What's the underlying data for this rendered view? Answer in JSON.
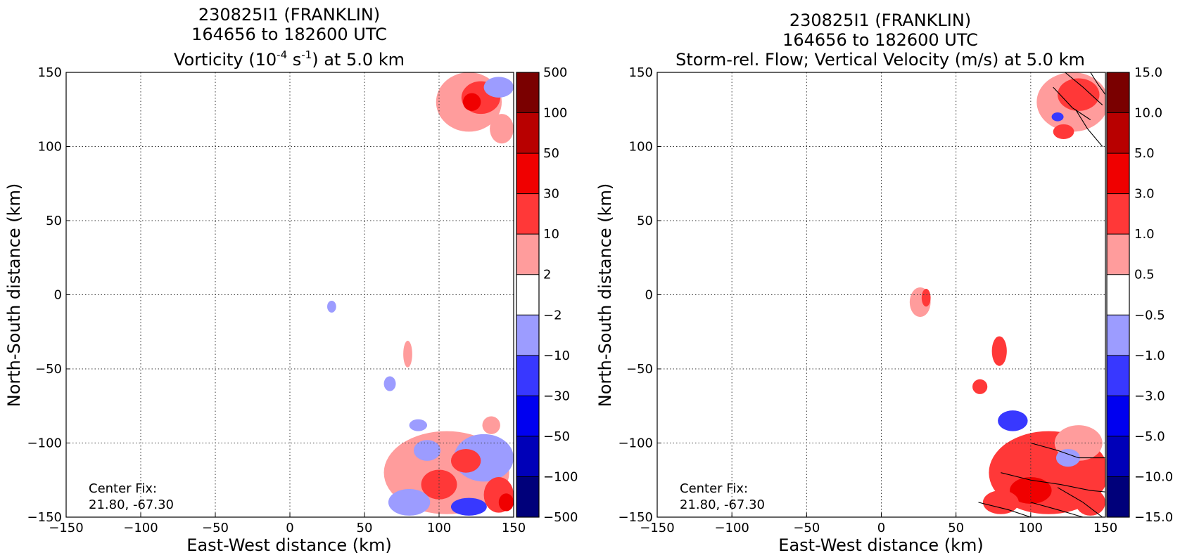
{
  "chart_data": [
    {
      "type": "heatmap",
      "title_lines": [
        "230825I1 (FRANKLIN)",
        "164656 to 182600 UTC"
      ],
      "title_var_pre": "Vorticity (10",
      "title_var_exp1": "-4",
      "title_var_mid": " s",
      "title_var_exp2": "-1",
      "title_var_post": ") at 5.0 km",
      "xlabel": "East-West distance (km)",
      "ylabel": "North-South distance (km)",
      "xlim": [
        -150,
        150
      ],
      "ylim": [
        -150,
        150
      ],
      "xticks": [
        -150,
        -100,
        -50,
        0,
        50,
        100,
        150
      ],
      "yticks": [
        -150,
        -100,
        -50,
        0,
        50,
        100,
        150
      ],
      "grid": true,
      "colorbar_levels": [
        "-500",
        "-100",
        "-50",
        "-30",
        "-10",
        "-2",
        "2",
        "10",
        "30",
        "50",
        "100",
        "500"
      ],
      "annotation_lines": [
        "Center Fix:",
        "21.80, -67.30"
      ],
      "patches": [
        {
          "x": 120,
          "y": 130,
          "rx": 22,
          "ry": 20,
          "level": "pos_low"
        },
        {
          "x": 128,
          "y": 133,
          "rx": 13,
          "ry": 11,
          "level": "pos_mid"
        },
        {
          "x": 122,
          "y": 130,
          "rx": 6,
          "ry": 6,
          "level": "pos_high"
        },
        {
          "x": 140,
          "y": 140,
          "rx": 10,
          "ry": 7,
          "level": "neg_low"
        },
        {
          "x": 142,
          "y": 112,
          "rx": 8,
          "ry": 10,
          "level": "pos_low"
        },
        {
          "x": 28,
          "y": -8,
          "rx": 3,
          "ry": 4,
          "level": "neg_low"
        },
        {
          "x": 79,
          "y": -40,
          "rx": 3,
          "ry": 9,
          "level": "pos_low"
        },
        {
          "x": 67,
          "y": -60,
          "rx": 4,
          "ry": 5,
          "level": "neg_low"
        },
        {
          "x": 105,
          "y": -120,
          "rx": 42,
          "ry": 28,
          "level": "pos_low"
        },
        {
          "x": 130,
          "y": -110,
          "rx": 20,
          "ry": 16,
          "level": "neg_low"
        },
        {
          "x": 118,
          "y": -112,
          "rx": 10,
          "ry": 8,
          "level": "pos_mid"
        },
        {
          "x": 100,
          "y": -128,
          "rx": 12,
          "ry": 10,
          "level": "pos_mid"
        },
        {
          "x": 140,
          "y": -135,
          "rx": 10,
          "ry": 12,
          "level": "pos_mid"
        },
        {
          "x": 145,
          "y": -140,
          "rx": 5,
          "ry": 6,
          "level": "pos_high"
        },
        {
          "x": 80,
          "y": -140,
          "rx": 14,
          "ry": 9,
          "level": "neg_low"
        },
        {
          "x": 92,
          "y": -105,
          "rx": 9,
          "ry": 7,
          "level": "neg_low"
        },
        {
          "x": 120,
          "y": -143,
          "rx": 12,
          "ry": 6,
          "level": "neg_mid"
        },
        {
          "x": 86,
          "y": -88,
          "rx": 6,
          "ry": 4,
          "level": "neg_low"
        },
        {
          "x": 135,
          "y": -88,
          "rx": 6,
          "ry": 6,
          "level": "pos_low"
        }
      ]
    },
    {
      "type": "heatmap",
      "title_lines": [
        "230825I1 (FRANKLIN)",
        "164656 to 182600 UTC",
        "Storm-rel. Flow; Vertical Velocity (m/s) at 5.0 km"
      ],
      "xlabel": "East-West distance (km)",
      "ylabel": "North-South distance (km)",
      "xlim": [
        -150,
        150
      ],
      "ylim": [
        -150,
        150
      ],
      "xticks": [
        -150,
        -100,
        -50,
        0,
        50,
        100,
        150
      ],
      "yticks": [
        -150,
        -100,
        -50,
        0,
        50,
        100,
        150
      ],
      "grid": true,
      "colorbar_levels": [
        "-15.0",
        "-10.0",
        "-5.0",
        "-3.0",
        "-1.0",
        "-0.5",
        "0.5",
        "1.0",
        "3.0",
        "5.0",
        "10.0",
        "15.0"
      ],
      "annotation_lines": [
        "Center Fix:",
        "21.80, -67.30"
      ],
      "patches": [
        {
          "x": 128,
          "y": 130,
          "rx": 24,
          "ry": 20,
          "level": "pos_low"
        },
        {
          "x": 132,
          "y": 135,
          "rx": 14,
          "ry": 11,
          "level": "pos_mid"
        },
        {
          "x": 122,
          "y": 110,
          "rx": 7,
          "ry": 5,
          "level": "pos_mid"
        },
        {
          "x": 118,
          "y": 120,
          "rx": 4,
          "ry": 3,
          "level": "neg_mid"
        },
        {
          "x": 26,
          "y": -5,
          "rx": 7,
          "ry": 10,
          "level": "pos_low"
        },
        {
          "x": 30,
          "y": -2,
          "rx": 3,
          "ry": 6,
          "level": "pos_mid"
        },
        {
          "x": 79,
          "y": -38,
          "rx": 5,
          "ry": 10,
          "level": "pos_mid"
        },
        {
          "x": 66,
          "y": -62,
          "rx": 5,
          "ry": 5,
          "level": "pos_mid"
        },
        {
          "x": 88,
          "y": -85,
          "rx": 10,
          "ry": 7,
          "level": "neg_mid"
        },
        {
          "x": 112,
          "y": -120,
          "rx": 40,
          "ry": 28,
          "level": "pos_mid"
        },
        {
          "x": 132,
          "y": -100,
          "rx": 16,
          "ry": 12,
          "level": "pos_low"
        },
        {
          "x": 125,
          "y": -110,
          "rx": 8,
          "ry": 6,
          "level": "neg_low"
        },
        {
          "x": 100,
          "y": -132,
          "rx": 14,
          "ry": 9,
          "level": "pos_high"
        },
        {
          "x": 80,
          "y": -140,
          "rx": 12,
          "ry": 8,
          "level": "pos_mid"
        },
        {
          "x": 140,
          "y": -140,
          "rx": 10,
          "ry": 9,
          "level": "pos_mid"
        }
      ],
      "streamlines": [
        [
          [
            123,
            150
          ],
          [
            135,
            140
          ],
          [
            148,
            128
          ]
        ],
        [
          [
            140,
            150
          ],
          [
            145,
            142
          ],
          [
            150,
            135
          ]
        ],
        [
          [
            115,
            140
          ],
          [
            128,
            126
          ],
          [
            140,
            118
          ]
        ],
        [
          [
            130,
            125
          ],
          [
            138,
            112
          ],
          [
            148,
            100
          ]
        ],
        [
          [
            100,
            -100
          ],
          [
            118,
            -105
          ],
          [
            132,
            -110
          ],
          [
            150,
            -110
          ]
        ],
        [
          [
            80,
            -120
          ],
          [
            100,
            -125
          ],
          [
            120,
            -128
          ],
          [
            140,
            -132
          ],
          [
            150,
            -133
          ]
        ],
        [
          [
            65,
            -140
          ],
          [
            85,
            -145
          ],
          [
            100,
            -150
          ]
        ],
        [
          [
            100,
            -140
          ],
          [
            118,
            -145
          ],
          [
            135,
            -150
          ]
        ],
        [
          [
            118,
            -130
          ],
          [
            135,
            -140
          ],
          [
            148,
            -150
          ]
        ]
      ]
    }
  ],
  "colors": {
    "levels": [
      "#00007a",
      "#0000b8",
      "#0000f0",
      "#3838ff",
      "#9c9cff",
      "#ffffff",
      "#ff9c9c",
      "#ff3838",
      "#f00000",
      "#b80000",
      "#7a0000"
    ],
    "patch_levels": {
      "neg_high": "#0000f0",
      "neg_mid": "#3838ff",
      "neg_low": "#9c9cff",
      "pos_low": "#ff9c9c",
      "pos_mid": "#ff3838",
      "pos_high": "#f00000"
    }
  }
}
